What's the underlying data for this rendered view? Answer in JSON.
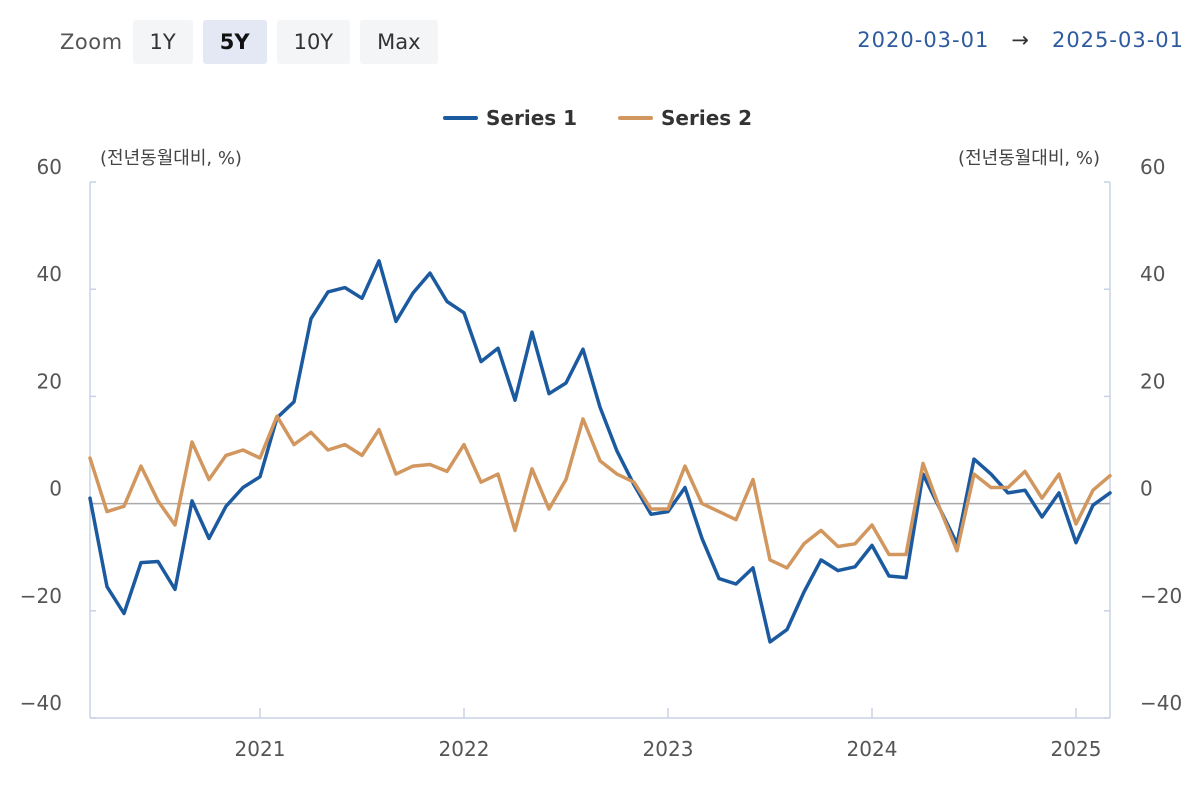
{
  "toolbar": {
    "zoom_label": "Zoom",
    "buttons": [
      "1Y",
      "5Y",
      "10Y",
      "Max"
    ],
    "active": "5Y"
  },
  "range": {
    "start": "2020-03-01",
    "arrow": "→",
    "end": "2025-03-01"
  },
  "colors": {
    "series1": "#1c5aa0",
    "series2": "#d2975e",
    "zero_line": "#aaaaaa",
    "axis": "#c8d2e6"
  },
  "chart_data": {
    "type": "line",
    "left_unit": "(전년동월대비, %)",
    "right_unit": "(전년동월대비, %)",
    "ylim": [
      -40,
      60
    ],
    "yticks": [
      -40,
      -20,
      0,
      20,
      40,
      60
    ],
    "xlim": [
      "2020-03",
      "2025-03"
    ],
    "xticks": [
      "2021",
      "2022",
      "2023",
      "2024",
      "2025"
    ],
    "legend_position": "top-center",
    "x": [
      "2020-03",
      "2020-04",
      "2020-05",
      "2020-06",
      "2020-07",
      "2020-08",
      "2020-09",
      "2020-10",
      "2020-11",
      "2020-12",
      "2021-01",
      "2021-02",
      "2021-03",
      "2021-04",
      "2021-05",
      "2021-06",
      "2021-07",
      "2021-08",
      "2021-09",
      "2021-10",
      "2021-11",
      "2021-12",
      "2022-01",
      "2022-02",
      "2022-03",
      "2022-04",
      "2022-05",
      "2022-06",
      "2022-07",
      "2022-08",
      "2022-09",
      "2022-10",
      "2022-11",
      "2022-12",
      "2023-01",
      "2023-02",
      "2023-03",
      "2023-04",
      "2023-05",
      "2023-06",
      "2023-07",
      "2023-08",
      "2023-09",
      "2023-10",
      "2023-11",
      "2023-12",
      "2024-01",
      "2024-02",
      "2024-03",
      "2024-04",
      "2024-05",
      "2024-06",
      "2024-07",
      "2024-08",
      "2024-09",
      "2024-10",
      "2024-11",
      "2024-12",
      "2025-01",
      "2025-02",
      "2025-03"
    ],
    "series": [
      {
        "name": "Series 1",
        "values": [
          1,
          -15.5,
          -20.5,
          -11,
          -10.8,
          -16,
          0.5,
          -6.5,
          -0.5,
          3,
          5,
          16,
          19,
          34.5,
          39.5,
          40.3,
          38.3,
          45.3,
          34,
          39.3,
          43,
          37.7,
          35.6,
          26.5,
          29,
          19.3,
          32,
          20.5,
          22.5,
          28.8,
          18,
          9.8,
          3.5,
          -2,
          -1.5,
          3,
          -6.5,
          -14,
          -15,
          -12,
          -25.8,
          -23.5,
          -16.5,
          -10.5,
          -12.5,
          -11.8,
          -7.8,
          -13.5,
          -13.8,
          5.5,
          -1,
          -7.5,
          8.3,
          5.5,
          2,
          2.5,
          -2.5,
          2,
          -7.3,
          -0.3,
          2
        ],
        "color_key": "series1"
      },
      {
        "name": "Series 2",
        "values": [
          8.5,
          -1.5,
          -0.5,
          7,
          0.5,
          -4,
          11.5,
          4.5,
          9,
          10,
          8.5,
          16.3,
          11,
          13.3,
          10,
          11,
          9,
          13.8,
          5.5,
          7,
          7.3,
          6,
          11,
          4,
          5.5,
          -5,
          6.5,
          -1,
          4.5,
          15.8,
          8,
          5.5,
          4,
          -1,
          -1,
          7,
          0,
          -1.5,
          -3,
          4.5,
          -10.5,
          -12,
          -7.5,
          -5,
          -8,
          -7.5,
          -4,
          -9.5,
          -9.5,
          7.5,
          -1,
          -8.8,
          5.5,
          3,
          3,
          6,
          1,
          5.5,
          -3.8,
          2.5,
          5.2
        ],
        "color_key": "series2"
      }
    ]
  }
}
